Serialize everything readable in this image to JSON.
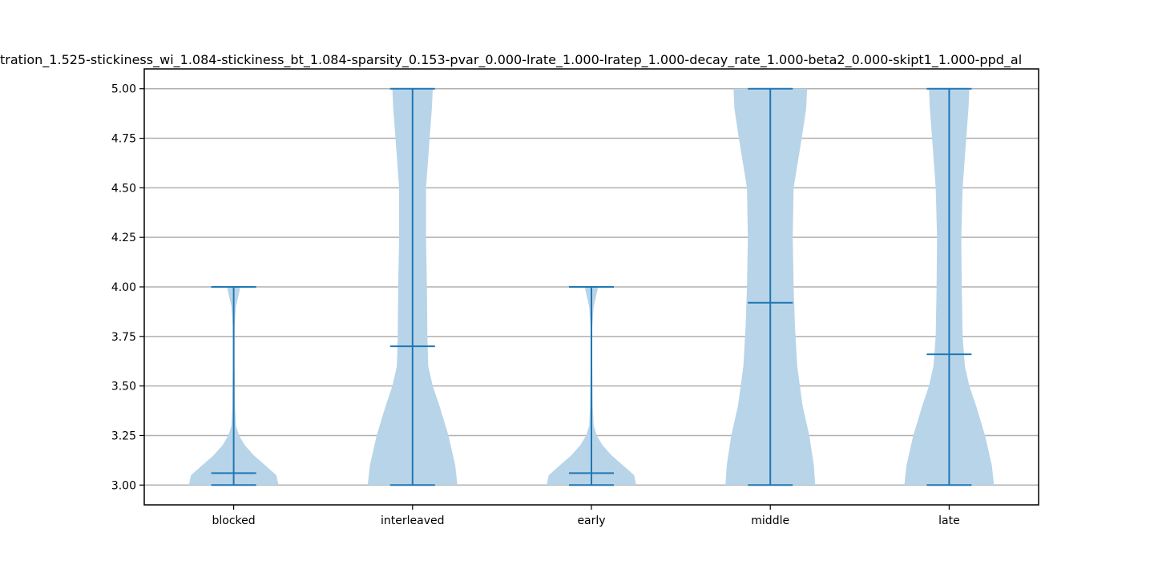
{
  "chart_data": {
    "type": "violin",
    "title": "tration_1.525-stickiness_wi_1.084-stickiness_bt_1.084-sparsity_0.153-pvar_0.000-lrate_1.000-lratep_1.000-decay_rate_1.000-beta2_0.000-skipt1_1.000-ppd_al",
    "xlabel": "",
    "ylabel": "",
    "categories": [
      "blocked",
      "interleaved",
      "early",
      "middle",
      "late"
    ],
    "ylim": [
      2.9,
      5.1
    ],
    "yticks": [
      "3.00",
      "3.25",
      "3.50",
      "3.75",
      "4.00",
      "4.25",
      "4.50",
      "4.75",
      "5.00"
    ],
    "grid": "horizontal",
    "colors": {
      "body": "#b8d4e8",
      "lines": "#1f77b4",
      "grid": "#b0b0b0",
      "axis": "#000000"
    },
    "series": [
      {
        "category": "blocked",
        "min": 3.0,
        "max": 4.0,
        "mean": 3.06,
        "density": [
          [
            3.0,
            1.0
          ],
          [
            3.05,
            0.95
          ],
          [
            3.1,
            0.7
          ],
          [
            3.15,
            0.45
          ],
          [
            3.2,
            0.25
          ],
          [
            3.25,
            0.12
          ],
          [
            3.3,
            0.05
          ],
          [
            3.4,
            0.03
          ],
          [
            3.6,
            0.02
          ],
          [
            3.8,
            0.02
          ],
          [
            3.9,
            0.05
          ],
          [
            4.0,
            0.15
          ]
        ]
      },
      {
        "category": "interleaved",
        "min": 3.0,
        "max": 5.0,
        "mean": 3.7,
        "density": [
          [
            3.0,
            1.0
          ],
          [
            3.1,
            0.95
          ],
          [
            3.25,
            0.8
          ],
          [
            3.4,
            0.6
          ],
          [
            3.5,
            0.45
          ],
          [
            3.6,
            0.35
          ],
          [
            3.75,
            0.33
          ],
          [
            4.0,
            0.32
          ],
          [
            4.25,
            0.3
          ],
          [
            4.5,
            0.3
          ],
          [
            4.75,
            0.38
          ],
          [
            4.9,
            0.43
          ],
          [
            5.0,
            0.45
          ]
        ]
      },
      {
        "category": "early",
        "min": 3.0,
        "max": 4.0,
        "mean": 3.06,
        "density": [
          [
            3.0,
            1.0
          ],
          [
            3.05,
            0.95
          ],
          [
            3.1,
            0.7
          ],
          [
            3.15,
            0.45
          ],
          [
            3.2,
            0.25
          ],
          [
            3.25,
            0.12
          ],
          [
            3.3,
            0.05
          ],
          [
            3.4,
            0.03
          ],
          [
            3.6,
            0.02
          ],
          [
            3.8,
            0.02
          ],
          [
            3.9,
            0.05
          ],
          [
            4.0,
            0.15
          ]
        ]
      },
      {
        "category": "middle",
        "min": 3.0,
        "max": 5.0,
        "mean": 3.92,
        "density": [
          [
            3.0,
            1.0
          ],
          [
            3.1,
            0.97
          ],
          [
            3.25,
            0.87
          ],
          [
            3.4,
            0.72
          ],
          [
            3.6,
            0.6
          ],
          [
            3.8,
            0.55
          ],
          [
            4.0,
            0.52
          ],
          [
            4.25,
            0.5
          ],
          [
            4.5,
            0.52
          ],
          [
            4.75,
            0.7
          ],
          [
            4.9,
            0.8
          ],
          [
            5.0,
            0.82
          ]
        ]
      },
      {
        "category": "late",
        "min": 3.0,
        "max": 5.0,
        "mean": 3.66,
        "density": [
          [
            3.0,
            1.0
          ],
          [
            3.1,
            0.95
          ],
          [
            3.25,
            0.8
          ],
          [
            3.4,
            0.6
          ],
          [
            3.5,
            0.45
          ],
          [
            3.6,
            0.35
          ],
          [
            3.75,
            0.3
          ],
          [
            4.0,
            0.28
          ],
          [
            4.25,
            0.27
          ],
          [
            4.5,
            0.3
          ],
          [
            4.75,
            0.38
          ],
          [
            4.9,
            0.43
          ],
          [
            5.0,
            0.45
          ]
        ]
      }
    ]
  }
}
